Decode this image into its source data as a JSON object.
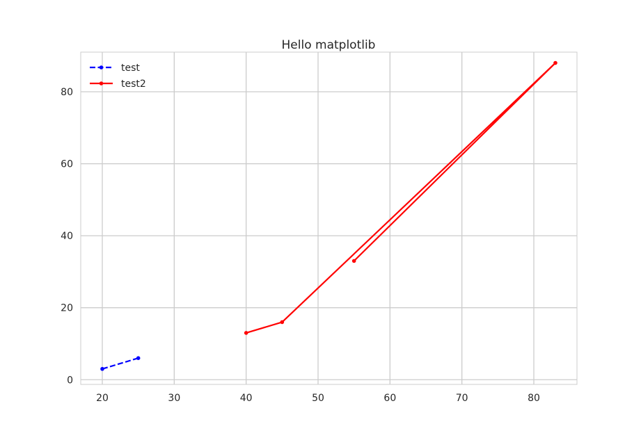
{
  "chart_data": {
    "type": "line",
    "title": "Hello matplotlib",
    "xlabel": "",
    "ylabel": "",
    "xlim": [
      17,
      86
    ],
    "ylim": [
      -1.3,
      91
    ],
    "x_ticks": [
      20,
      30,
      40,
      50,
      60,
      70,
      80
    ],
    "y_ticks": [
      0,
      20,
      40,
      60,
      80
    ],
    "grid": true,
    "legend": "top-left",
    "series": [
      {
        "name": "test",
        "color": "#0000ff",
        "style": "dashed",
        "x": [
          20,
          25
        ],
        "y": [
          3,
          6
        ]
      },
      {
        "name": "test2",
        "color": "#ff0000",
        "style": "solid",
        "x": [
          40,
          45,
          83,
          55
        ],
        "y": [
          13,
          16,
          88,
          33
        ]
      }
    ]
  }
}
